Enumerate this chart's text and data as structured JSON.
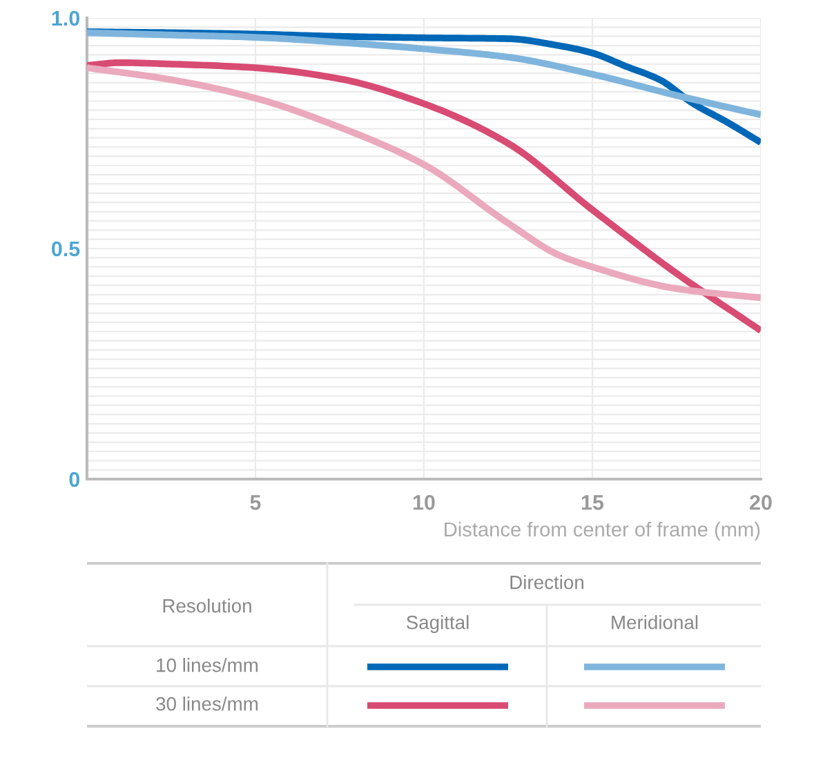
{
  "chart_data": {
    "type": "line",
    "xlabel": "Distance from center of frame (mm)",
    "xlim": [
      0,
      20
    ],
    "xticks": [
      {
        "value": 0,
        "label": null
      },
      5,
      10,
      15,
      20
    ],
    "ylim": [
      0,
      1.0
    ],
    "yticks": [
      0,
      {
        "value": 0.02,
        "label": null
      },
      {
        "value": 0.04,
        "label": null
      },
      {
        "value": 0.06,
        "label": null
      },
      {
        "value": 0.08,
        "label": null
      },
      {
        "value": 0.1,
        "label": null
      },
      {
        "value": 0.12,
        "label": null
      },
      {
        "value": 0.14,
        "label": null
      },
      {
        "value": 0.16,
        "label": null
      },
      {
        "value": 0.18,
        "label": null
      },
      {
        "value": 0.2,
        "label": null
      },
      {
        "value": 0.22,
        "label": null
      },
      {
        "value": 0.24,
        "label": null
      },
      {
        "value": 0.26,
        "label": null
      },
      {
        "value": 0.28,
        "label": null
      },
      {
        "value": 0.3,
        "label": null
      },
      {
        "value": 0.32,
        "label": null
      },
      {
        "value": 0.34,
        "label": null
      },
      {
        "value": 0.36,
        "label": null
      },
      {
        "value": 0.38,
        "label": null
      },
      {
        "value": 0.4,
        "label": null
      },
      {
        "value": 0.42,
        "label": null
      },
      {
        "value": 0.44,
        "label": null
      },
      {
        "value": 0.46,
        "label": null
      },
      {
        "value": 0.48,
        "label": null
      },
      0.5,
      {
        "value": 0.52,
        "label": null
      },
      {
        "value": 0.54,
        "label": null
      },
      {
        "value": 0.56,
        "label": null
      },
      {
        "value": 0.58,
        "label": null
      },
      {
        "value": 0.6,
        "label": null
      },
      {
        "value": 0.62,
        "label": null
      },
      {
        "value": 0.64,
        "label": null
      },
      {
        "value": 0.66,
        "label": null
      },
      {
        "value": 0.68,
        "label": null
      },
      {
        "value": 0.7,
        "label": null
      },
      {
        "value": 0.72,
        "label": null
      },
      {
        "value": 0.74,
        "label": null
      },
      {
        "value": 0.76,
        "label": null
      },
      {
        "value": 0.78,
        "label": null
      },
      {
        "value": 0.8,
        "label": null
      },
      {
        "value": 0.82,
        "label": null
      },
      {
        "value": 0.84,
        "label": null
      },
      {
        "value": 0.86,
        "label": null
      },
      {
        "value": 0.88,
        "label": null
      },
      {
        "value": 0.9,
        "label": null
      },
      {
        "value": 0.92,
        "label": null
      },
      {
        "value": 0.94,
        "label": null
      },
      {
        "value": 0.96,
        "label": null
      },
      {
        "value": 0.98,
        "label": null
      },
      {
        "value": 1.0,
        "label": "1.0"
      }
    ],
    "grid": true,
    "series": [
      {
        "color": "#0068b7",
        "x": [
          0,
          2.5,
          5,
          7.5,
          10,
          12.5,
          14,
          15,
          16,
          17,
          18,
          19,
          20
        ],
        "values": [
          0.97,
          0.968,
          0.965,
          0.96,
          0.957,
          0.955,
          0.94,
          0.924,
          0.895,
          0.866,
          0.814,
          0.774,
          0.73
        ]
      },
      {
        "color": "#7fb5dd",
        "x": [
          0,
          2.5,
          5,
          7.5,
          10,
          12.5,
          15,
          17.5,
          20
        ],
        "values": [
          0.968,
          0.963,
          0.958,
          0.947,
          0.933,
          0.915,
          0.878,
          0.832,
          0.79
        ]
      },
      {
        "color": "#d84b73",
        "x": [
          0,
          1,
          2.5,
          5,
          7.5,
          10,
          12.5,
          15,
          17.5,
          20
        ],
        "values": [
          0.897,
          0.903,
          0.9,
          0.892,
          0.868,
          0.814,
          0.728,
          0.584,
          0.446,
          0.322
        ]
      },
      {
        "color": "#eba9bd",
        "x": [
          0,
          2.5,
          5,
          7.5,
          10,
          12.5,
          14,
          15,
          17.5,
          20
        ],
        "values": [
          0.892,
          0.866,
          0.826,
          0.763,
          0.682,
          0.555,
          0.486,
          0.46,
          0.413,
          0.393
        ]
      }
    ],
    "annotations": [
      "Resolution",
      "Direction",
      "Sagittal",
      "Meridional",
      "10 lines/mm",
      "30 lines/mm"
    ]
  }
}
